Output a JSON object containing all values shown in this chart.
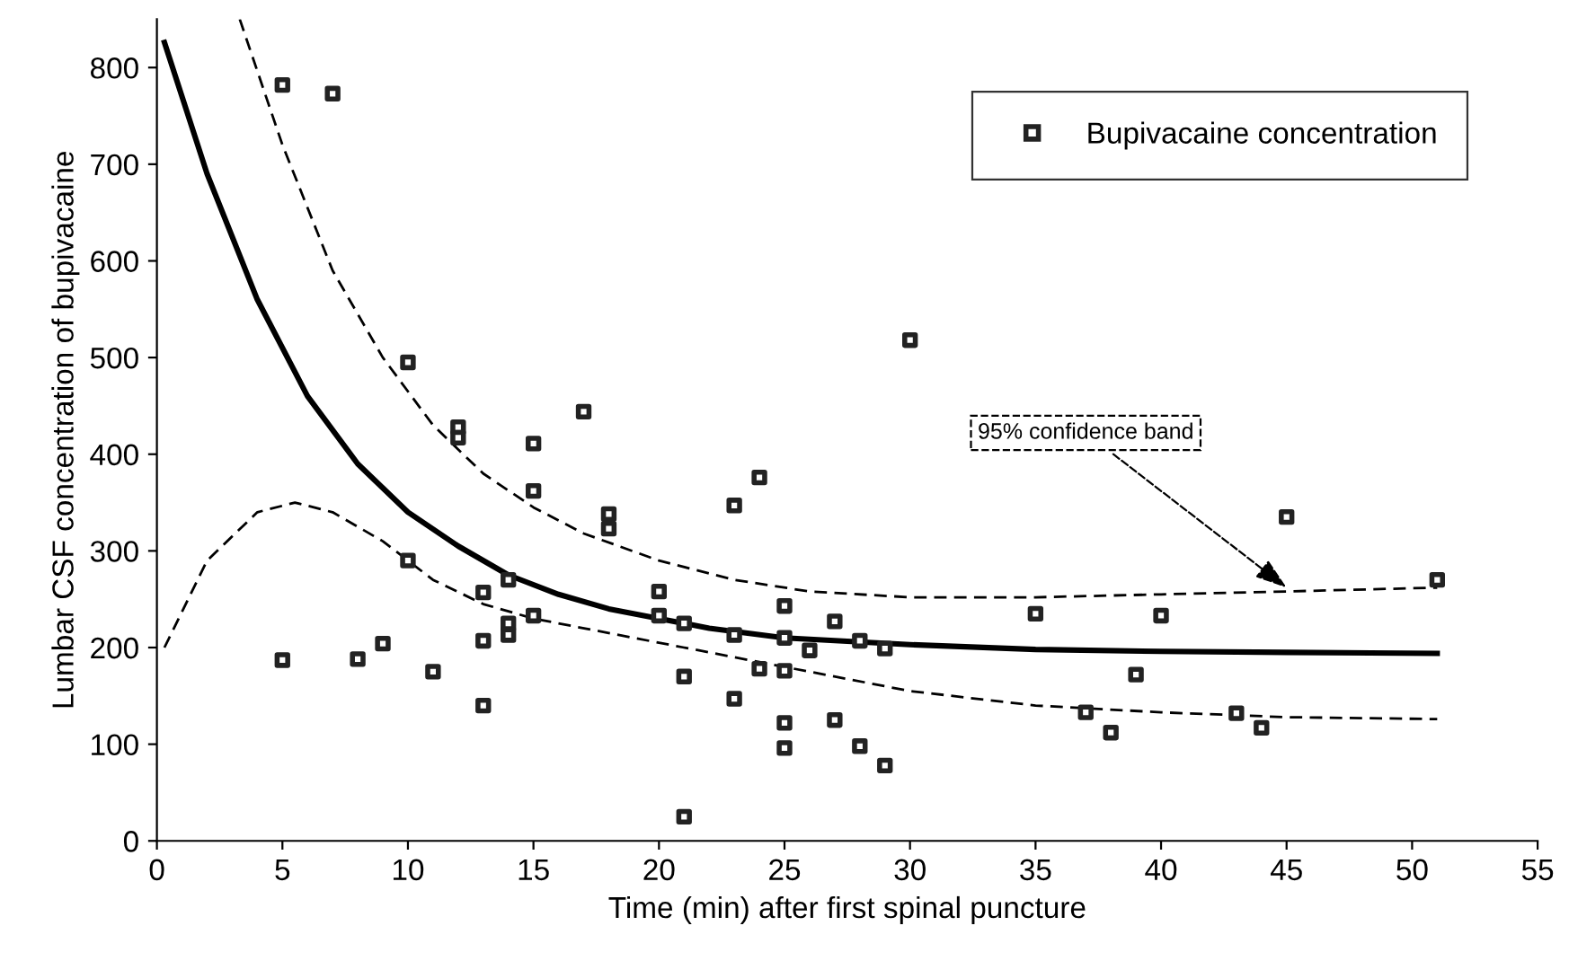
{
  "chart_data": {
    "type": "scatter",
    "xlabel": "Time (min) after first spinal puncture",
    "ylabel": "Lumbar CSF concentration of bupivacaine",
    "xlim": [
      0,
      55
    ],
    "ylim": [
      0,
      850
    ],
    "xticks": [
      0,
      5,
      10,
      15,
      20,
      25,
      30,
      35,
      40,
      45,
      50,
      55
    ],
    "yticks": [
      0,
      100,
      200,
      300,
      400,
      500,
      600,
      700,
      800
    ],
    "grid": false,
    "legend": "top right",
    "series": [
      {
        "name": "Bupivacaine concentration",
        "marker": "square",
        "color": "#222222",
        "x": [
          5,
          7,
          5,
          8,
          9,
          10,
          10,
          11,
          12,
          12,
          13,
          13,
          13,
          14,
          14,
          14,
          15,
          15,
          15,
          17,
          18,
          18,
          20,
          20,
          21,
          21,
          21,
          23,
          23,
          23,
          24,
          24,
          25,
          25,
          25,
          25,
          25,
          26,
          27,
          27,
          28,
          28,
          29,
          29,
          30,
          35,
          37,
          38,
          39,
          40,
          43,
          44,
          45,
          51
        ],
        "values": [
          782,
          773,
          187,
          188,
          204,
          495,
          290,
          175,
          428,
          417,
          257,
          207,
          140,
          270,
          225,
          213,
          411,
          362,
          233,
          444,
          338,
          323,
          258,
          233,
          225,
          170,
          25,
          347,
          213,
          147,
          376,
          178,
          243,
          210,
          176,
          122,
          96,
          197,
          227,
          125,
          207,
          98,
          199,
          78,
          518,
          235,
          133,
          112,
          172,
          233,
          132,
          117,
          335,
          270
        ]
      },
      {
        "type": "line",
        "line_style": "solid",
        "marker": "none",
        "color": "#000000",
        "x": [
          0.3,
          2,
          4,
          6,
          8,
          10,
          12,
          14,
          16,
          18,
          20,
          22,
          25,
          30,
          35,
          40,
          45,
          51
        ],
        "values": [
          826,
          690,
          560,
          460,
          390,
          340,
          305,
          275,
          255,
          240,
          230,
          220,
          210,
          203,
          198,
          196,
          195,
          194
        ]
      },
      {
        "type": "line",
        "line_style": "dashed",
        "marker": "none",
        "color": "#000000",
        "x": [
          3.3,
          5,
          7,
          9,
          11,
          13,
          15,
          17,
          20,
          23,
          26,
          30,
          35,
          40,
          45,
          51
        ],
        "values": [
          850,
          720,
          590,
          500,
          430,
          380,
          345,
          318,
          290,
          270,
          258,
          252,
          252,
          255,
          258,
          262
        ]
      },
      {
        "type": "line",
        "line_style": "dashed",
        "marker": "none",
        "color": "#000000",
        "x": [
          0.3,
          2,
          4,
          5.5,
          7,
          9,
          11,
          13,
          15,
          18,
          21,
          25,
          30,
          35,
          40,
          45,
          51
        ],
        "values": [
          200,
          290,
          340,
          350,
          340,
          310,
          270,
          245,
          230,
          215,
          200,
          180,
          155,
          140,
          133,
          128,
          126
        ]
      }
    ],
    "annotations": [
      {
        "text": "95% confidence band",
        "x": 45,
        "y": 262
      }
    ]
  }
}
